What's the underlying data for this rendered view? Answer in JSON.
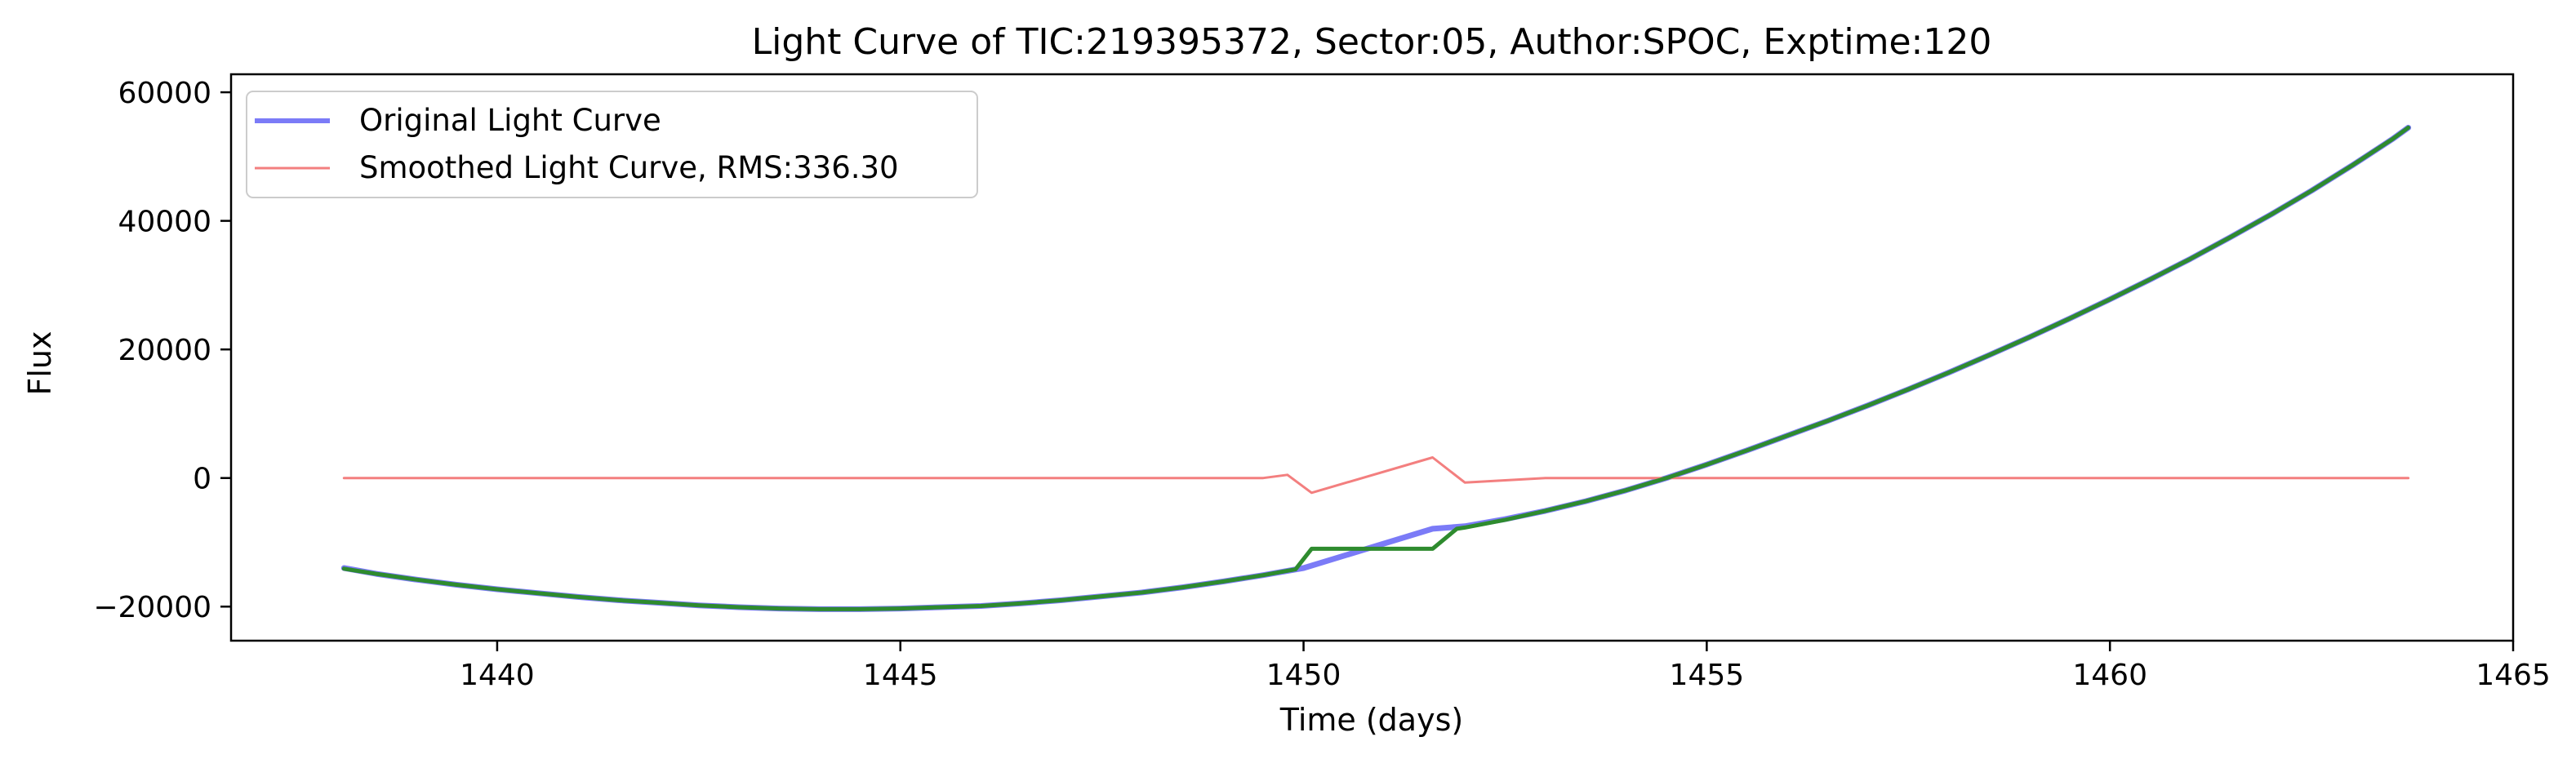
{
  "chart_data": {
    "type": "line",
    "title": "Light Curve of TIC:219395372, Sector:05, Author:SPOC, Exptime:120",
    "xlabel": "Time (days)",
    "ylabel": "Flux",
    "xlim": [
      1436.7,
      1465
    ],
    "ylim": [
      -25300,
      62800
    ],
    "x_ticks": [
      1440,
      1445,
      1450,
      1455,
      1460,
      1465
    ],
    "y_ticks": [
      -20000,
      0,
      20000,
      40000,
      60000
    ],
    "x_tick_labels": [
      "1440",
      "1445",
      "1450",
      "1455",
      "1460",
      "1465"
    ],
    "y_tick_labels": [
      "−20000",
      "0",
      "20000",
      "40000",
      "60000"
    ],
    "grid": false,
    "legend_position": "upper-left",
    "series": [
      {
        "name": "Original Light Curve",
        "color": "#7b7bf7",
        "points": [
          [
            1438.1,
            -14000
          ],
          [
            1438.5,
            -14900
          ],
          [
            1439.0,
            -15800
          ],
          [
            1439.5,
            -16600
          ],
          [
            1440.0,
            -17300
          ],
          [
            1440.5,
            -17900
          ],
          [
            1441.0,
            -18500
          ],
          [
            1441.5,
            -19000
          ],
          [
            1442.0,
            -19400
          ],
          [
            1442.5,
            -19800
          ],
          [
            1443.0,
            -20100
          ],
          [
            1443.5,
            -20300
          ],
          [
            1444.0,
            -20400
          ],
          [
            1444.5,
            -20400
          ],
          [
            1445.0,
            -20300
          ],
          [
            1445.5,
            -20100
          ],
          [
            1446.0,
            -19900
          ],
          [
            1446.5,
            -19500
          ],
          [
            1447.0,
            -19000
          ],
          [
            1447.5,
            -18400
          ],
          [
            1448.0,
            -17800
          ],
          [
            1448.5,
            -17000
          ],
          [
            1449.0,
            -16100
          ],
          [
            1449.5,
            -15100
          ],
          [
            1450.0,
            -14000
          ],
          [
            1451.6,
            -7900
          ],
          [
            1452.0,
            -7500
          ],
          [
            1452.5,
            -6400
          ],
          [
            1453.0,
            -5100
          ],
          [
            1453.5,
            -3600
          ],
          [
            1454.0,
            -1900
          ],
          [
            1454.5,
            0
          ],
          [
            1455.0,
            2100
          ],
          [
            1455.5,
            4300
          ],
          [
            1456.0,
            6600
          ],
          [
            1456.5,
            8900
          ],
          [
            1457.0,
            11300
          ],
          [
            1457.5,
            13800
          ],
          [
            1458.0,
            16400
          ],
          [
            1458.5,
            19100
          ],
          [
            1459.0,
            21900
          ],
          [
            1459.5,
            24800
          ],
          [
            1460.0,
            27800
          ],
          [
            1460.5,
            30900
          ],
          [
            1461.0,
            34100
          ],
          [
            1461.5,
            37500
          ],
          [
            1462.0,
            41000
          ],
          [
            1462.5,
            44700
          ],
          [
            1463.0,
            48600
          ],
          [
            1463.5,
            52700
          ],
          [
            1463.7,
            54500
          ]
        ]
      },
      {
        "name": "Smoothed Light Curve, RMS:336.30",
        "color": "#f37f7f",
        "points": [
          [
            1438.1,
            0
          ],
          [
            1440,
            0
          ],
          [
            1442,
            0
          ],
          [
            1444,
            0
          ],
          [
            1446,
            0
          ],
          [
            1448,
            0
          ],
          [
            1449.5,
            0
          ],
          [
            1449.8,
            500
          ],
          [
            1450.1,
            -2300
          ],
          [
            1451.6,
            3200
          ],
          [
            1452.0,
            -700
          ],
          [
            1453,
            0
          ],
          [
            1455,
            0
          ],
          [
            1457,
            0
          ],
          [
            1459,
            0
          ],
          [
            1461,
            0
          ],
          [
            1463.7,
            0
          ]
        ]
      },
      {
        "name": "",
        "color": "#2e8b2e",
        "points": [
          [
            1438.1,
            -14100
          ],
          [
            1438.5,
            -14900
          ],
          [
            1439.0,
            -15800
          ],
          [
            1439.5,
            -16600
          ],
          [
            1440.0,
            -17300
          ],
          [
            1440.5,
            -17900
          ],
          [
            1441.0,
            -18500
          ],
          [
            1441.5,
            -19000
          ],
          [
            1442.0,
            -19400
          ],
          [
            1442.5,
            -19800
          ],
          [
            1443.0,
            -20100
          ],
          [
            1443.5,
            -20300
          ],
          [
            1444.0,
            -20400
          ],
          [
            1444.5,
            -20400
          ],
          [
            1445.0,
            -20300
          ],
          [
            1445.5,
            -20100
          ],
          [
            1446.0,
            -19900
          ],
          [
            1446.5,
            -19500
          ],
          [
            1447.0,
            -19000
          ],
          [
            1447.5,
            -18400
          ],
          [
            1448.0,
            -17800
          ],
          [
            1448.5,
            -17000
          ],
          [
            1449.0,
            -16100
          ],
          [
            1449.5,
            -15100
          ],
          [
            1449.9,
            -14200
          ],
          [
            1450.1,
            -11000
          ],
          [
            1451.6,
            -11000
          ],
          [
            1451.9,
            -7900
          ],
          [
            1452.0,
            -7700
          ],
          [
            1452.5,
            -6500
          ],
          [
            1453.0,
            -5100
          ],
          [
            1453.5,
            -3600
          ],
          [
            1454.0,
            -1900
          ],
          [
            1454.5,
            0
          ],
          [
            1455.0,
            2100
          ],
          [
            1455.5,
            4300
          ],
          [
            1456.0,
            6600
          ],
          [
            1456.5,
            8900
          ],
          [
            1457.0,
            11300
          ],
          [
            1457.5,
            13800
          ],
          [
            1458.0,
            16400
          ],
          [
            1458.5,
            19100
          ],
          [
            1459.0,
            21900
          ],
          [
            1459.5,
            24800
          ],
          [
            1460.0,
            27800
          ],
          [
            1460.5,
            30900
          ],
          [
            1461.0,
            34100
          ],
          [
            1461.5,
            37500
          ],
          [
            1462.0,
            41000
          ],
          [
            1462.5,
            44700
          ],
          [
            1463.0,
            48600
          ],
          [
            1463.5,
            52700
          ],
          [
            1463.7,
            54500
          ]
        ]
      }
    ]
  }
}
